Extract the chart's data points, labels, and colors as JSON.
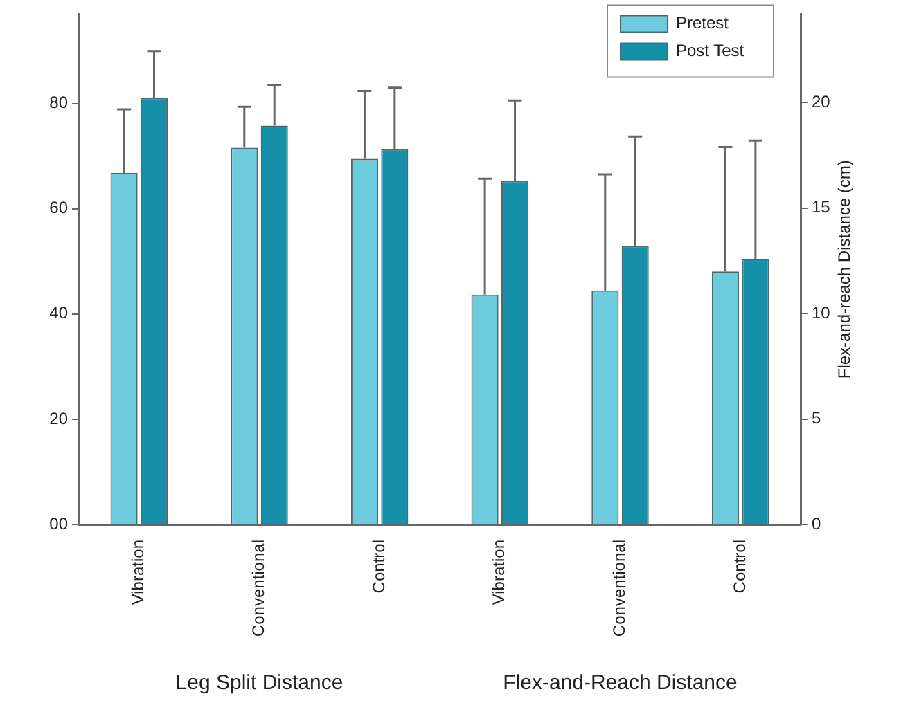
{
  "chart_data": {
    "type": "bar",
    "y2label": "Flex-and-reach Distance (cm)",
    "annotations": [
      "Leg Split Distance",
      "Flex-and-Reach Distance"
    ],
    "categories": [
      "Vibration",
      "Conventional",
      "Control",
      "Vibration",
      "Conventional",
      "Control"
    ],
    "series": [
      {
        "name": "Pretest",
        "color": "#6ccbdc",
        "values": [
          66.8,
          71.6,
          69.5,
          null,
          null,
          null
        ],
        "errors": [
          [
            66.8,
            78.9
          ],
          [
            71.6,
            79.4
          ],
          [
            69.5,
            82.4
          ],
          null,
          null,
          null
        ]
      },
      {
        "name": "Post Test",
        "color": "#1590a8",
        "values": [
          81.1,
          75.8,
          71.3,
          null,
          null,
          null
        ],
        "errors": [
          [
            81.1,
            90.0
          ],
          [
            75.8,
            83.5
          ],
          [
            71.3,
            83.0
          ],
          null,
          null,
          null
        ]
      },
      {
        "color": "#6ccbdc",
        "axis": "y2",
        "values": [
          null,
          null,
          null,
          10.9,
          11.1,
          12.0
        ],
        "errors": [
          null,
          null,
          null,
          [
            10.9,
            16.4
          ],
          [
            11.1,
            16.6
          ],
          [
            12.0,
            17.9
          ]
        ]
      },
      {
        "color": "#1590a8",
        "axis": "y2",
        "values": [
          null,
          null,
          null,
          16.3,
          13.2,
          12.6
        ],
        "errors": [
          null,
          null,
          null,
          [
            16.3,
            20.1
          ],
          [
            13.2,
            18.4
          ],
          [
            12.6,
            18.2
          ]
        ]
      }
    ],
    "ylim": [
      0,
      97
    ],
    "yticks": [
      {
        "value": 0,
        "label": "00"
      },
      20,
      40,
      60,
      80
    ],
    "y2lim": [
      0,
      24.2
    ],
    "y2ticks": [
      0,
      5,
      10,
      15,
      20
    ],
    "grid": false,
    "legend": "top right"
  }
}
